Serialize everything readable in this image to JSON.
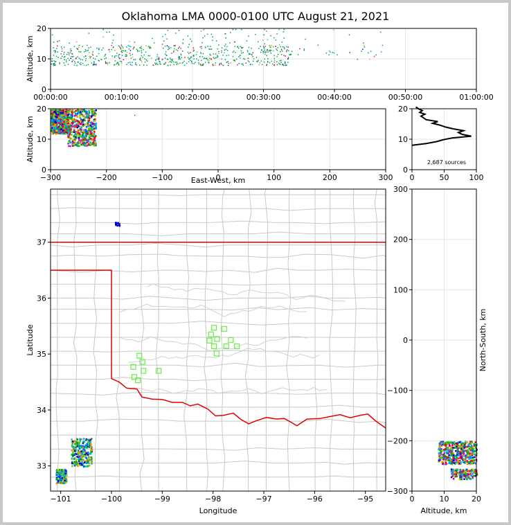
{
  "title": "Oklahoma LMA 0000-0100 UTC August 21, 2021",
  "chart_data": [
    {
      "id": "time-height",
      "type": "scatter",
      "ylabel": "Altitude, km",
      "xlim": [
        "00:00:00",
        "01:00:00"
      ],
      "ylim": [
        0,
        20
      ],
      "x_ticks": [
        "00:00:00",
        "00:10:00",
        "00:20:00",
        "00:30:00",
        "00:40:00",
        "00:50:00",
        "01:00:00"
      ],
      "y_ticks": [
        "0",
        "10",
        "20"
      ],
      "grid": true,
      "clusters": [
        {
          "t_min": [
            0,
            34
          ],
          "alt_km": [
            8,
            20
          ],
          "density": "high"
        },
        {
          "t_min": [
            34,
            47
          ],
          "alt_km": [
            10,
            20
          ],
          "density": "low"
        }
      ]
    },
    {
      "id": "ew-height",
      "type": "scatter",
      "xlabel": "East-West, km",
      "ylabel": "Altitude, km",
      "xlim": [
        -300,
        300
      ],
      "ylim": [
        0,
        20
      ],
      "x_ticks": [
        "−300",
        "−200",
        "−100",
        "0",
        "100",
        "200",
        "300"
      ],
      "y_ticks": [
        "0",
        "10",
        "20"
      ],
      "grid": true,
      "clusters": [
        {
          "x_km": [
            -300,
            -270
          ],
          "alt_km": [
            12,
            20
          ]
        },
        {
          "x_km": [
            -270,
            -220
          ],
          "alt_km": [
            8,
            20
          ]
        }
      ]
    },
    {
      "id": "height-histogram",
      "type": "line",
      "xlim": [
        0,
        100
      ],
      "ylim": [
        0,
        20
      ],
      "x_ticks": [
        "0",
        "50",
        "100"
      ],
      "y_ticks": [
        "0",
        "10",
        "20"
      ],
      "annotation": "2,687 sources",
      "grid": true,
      "profile": [
        {
          "alt": 8.0,
          "count": 0
        },
        {
          "alt": 8.6,
          "count": 22
        },
        {
          "alt": 9.2,
          "count": 38
        },
        {
          "alt": 9.8,
          "count": 48
        },
        {
          "alt": 10.4,
          "count": 62
        },
        {
          "alt": 11.0,
          "count": 92
        },
        {
          "alt": 11.6,
          "count": 78
        },
        {
          "alt": 12.2,
          "count": 72
        },
        {
          "alt": 12.8,
          "count": 80
        },
        {
          "alt": 13.4,
          "count": 64
        },
        {
          "alt": 14.0,
          "count": 52
        },
        {
          "alt": 14.6,
          "count": 44
        },
        {
          "alt": 15.2,
          "count": 32
        },
        {
          "alt": 15.8,
          "count": 40
        },
        {
          "alt": 16.4,
          "count": 22
        },
        {
          "alt": 17.0,
          "count": 18
        },
        {
          "alt": 17.6,
          "count": 14
        },
        {
          "alt": 18.2,
          "count": 20
        },
        {
          "alt": 18.8,
          "count": 12
        },
        {
          "alt": 19.4,
          "count": 16
        },
        {
          "alt": 20.0,
          "count": 10
        },
        {
          "alt": 20.6,
          "count": 6
        }
      ]
    },
    {
      "id": "plan-map",
      "type": "scatter",
      "xlabel": "Longitude",
      "ylabel": "Latitude",
      "xlim": [
        -101.2,
        -94.6
      ],
      "ylim": [
        32.55,
        37.95
      ],
      "x_ticks": [
        "−101",
        "−100",
        "−99",
        "−98",
        "−97",
        "−96",
        "−95"
      ],
      "y_ticks": [
        "33",
        "34",
        "35",
        "36",
        "37"
      ],
      "stations": [
        {
          "lon": -97.98,
          "lat": 35.47
        },
        {
          "lon": -97.78,
          "lat": 35.45
        },
        {
          "lon": -98.04,
          "lat": 35.35
        },
        {
          "lon": -97.92,
          "lat": 35.27
        },
        {
          "lon": -98.07,
          "lat": 35.24
        },
        {
          "lon": -97.65,
          "lat": 35.25
        },
        {
          "lon": -97.98,
          "lat": 35.14
        },
        {
          "lon": -97.74,
          "lat": 35.14
        },
        {
          "lon": -97.53,
          "lat": 35.14
        },
        {
          "lon": -97.93,
          "lat": 35.01
        },
        {
          "lon": -99.45,
          "lat": 34.97
        },
        {
          "lon": -99.39,
          "lat": 34.86
        },
        {
          "lon": -99.57,
          "lat": 34.77
        },
        {
          "lon": -99.37,
          "lat": 34.7
        },
        {
          "lon": -99.07,
          "lat": 34.7
        },
        {
          "lon": -99.55,
          "lat": 34.59
        },
        {
          "lon": -99.48,
          "lat": 34.53
        }
      ],
      "clusters": [
        {
          "lon": [
            -101.1,
            -100.9
          ],
          "lat": [
            32.7,
            32.95
          ]
        },
        {
          "lon": [
            -100.8,
            -100.4
          ],
          "lat": [
            33.0,
            33.5
          ]
        },
        {
          "lon": [
            -99.95,
            -99.85
          ],
          "lat": [
            37.3,
            37.37
          ]
        }
      ]
    },
    {
      "id": "ns-height",
      "type": "scatter",
      "xlabel": "Altitude, km",
      "ylabel": "North-South, km",
      "xlim": [
        0,
        20
      ],
      "ylim": [
        -300,
        300
      ],
      "x_ticks": [
        "0",
        "10",
        "20"
      ],
      "y_ticks": [
        "−300",
        "−200",
        "−100",
        "0",
        "100",
        "200",
        "300"
      ],
      "grid": true,
      "clusters": [
        {
          "alt_km": [
            8,
            20
          ],
          "y_km": [
            -245,
            -200
          ]
        },
        {
          "alt_km": [
            12,
            20
          ],
          "y_km": [
            -275,
            -255
          ]
        }
      ]
    }
  ]
}
